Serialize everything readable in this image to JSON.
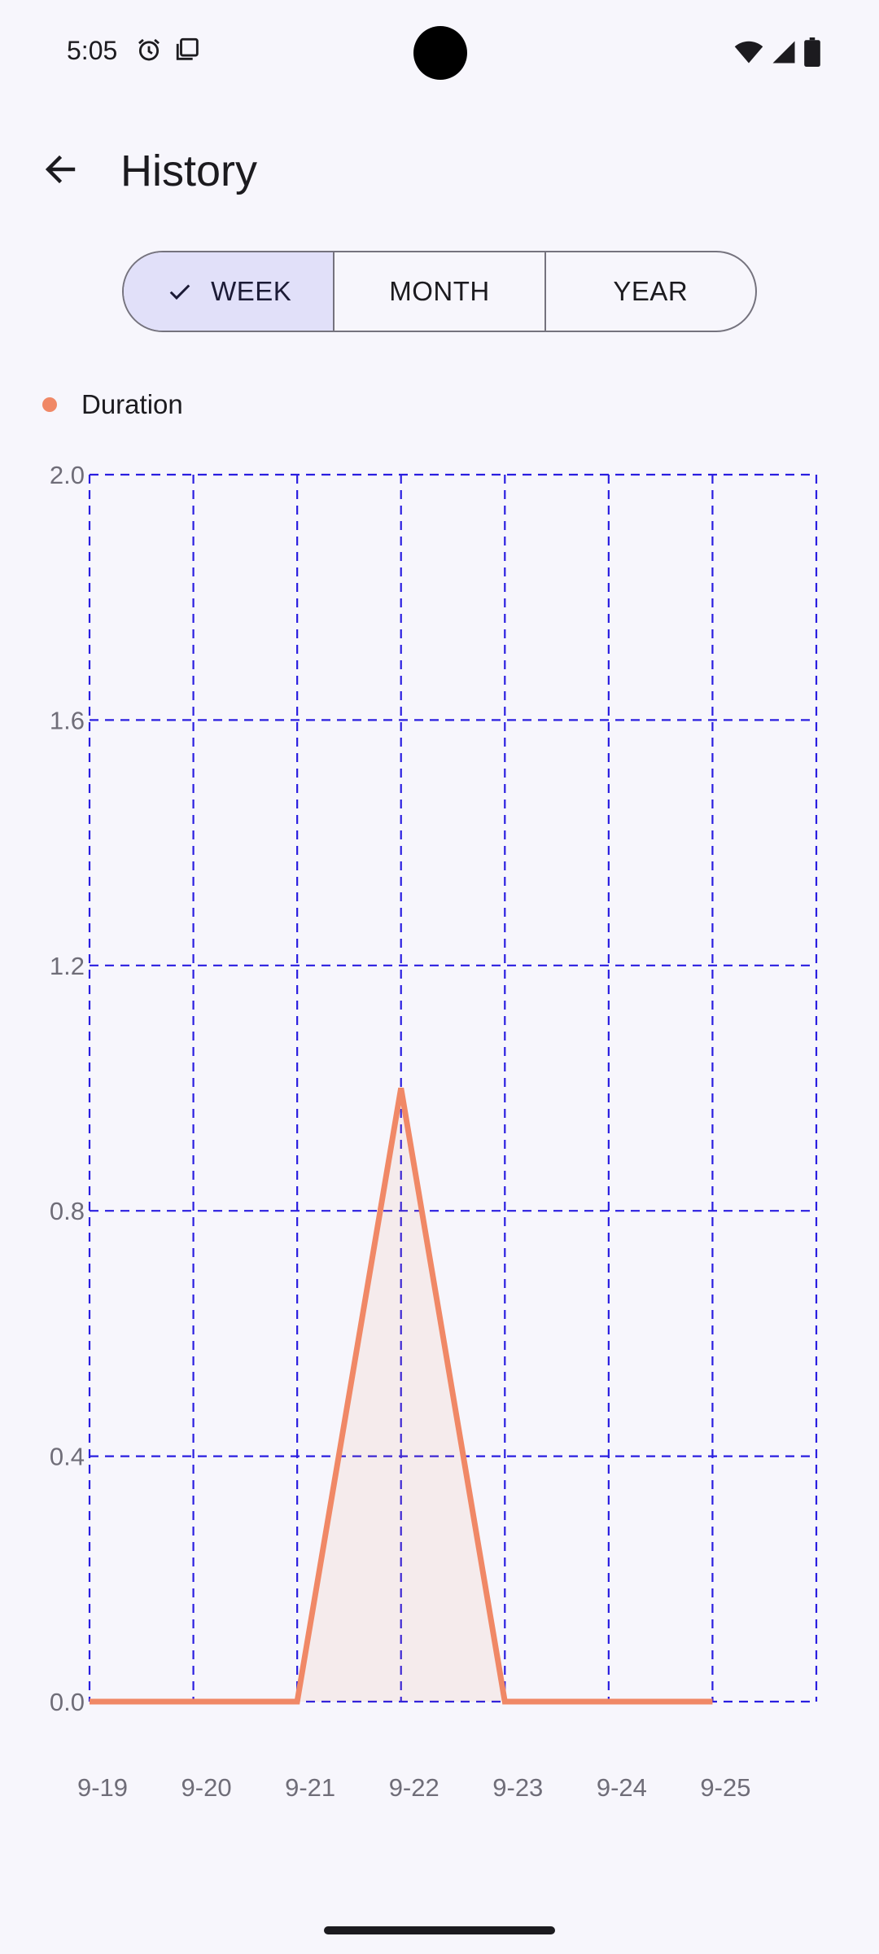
{
  "status_bar": {
    "time": "5:05",
    "icons_left": [
      "alarm-icon",
      "screen-share-icon"
    ],
    "icons_right": [
      "wifi-icon",
      "signal-icon",
      "battery-icon"
    ]
  },
  "app_bar": {
    "title": "History",
    "back_icon": "arrow-back-icon"
  },
  "segments": {
    "week": "WEEK",
    "month": "MONTH",
    "year": "YEAR",
    "selected": "WEEK"
  },
  "colors": {
    "accent": "#f08866",
    "grid": "#2a1ee0",
    "selected_segment": "#e1e0f9"
  },
  "chart_data": {
    "type": "area",
    "categories": [
      "9-19",
      "9-20",
      "9-21",
      "9-22",
      "9-23",
      "9-24",
      "9-25"
    ],
    "series": [
      {
        "name": "Duration",
        "values": [
          0.0,
          0.0,
          0.0,
          1.0,
          0.0,
          0.0,
          0.0
        ]
      }
    ],
    "ylim": [
      0.0,
      2.0
    ],
    "yticks": [
      "0.0",
      "0.4",
      "0.8",
      "1.2",
      "1.6",
      "2.0"
    ],
    "grid": true,
    "grid_style": "dashed",
    "legend_position": "top-left"
  }
}
